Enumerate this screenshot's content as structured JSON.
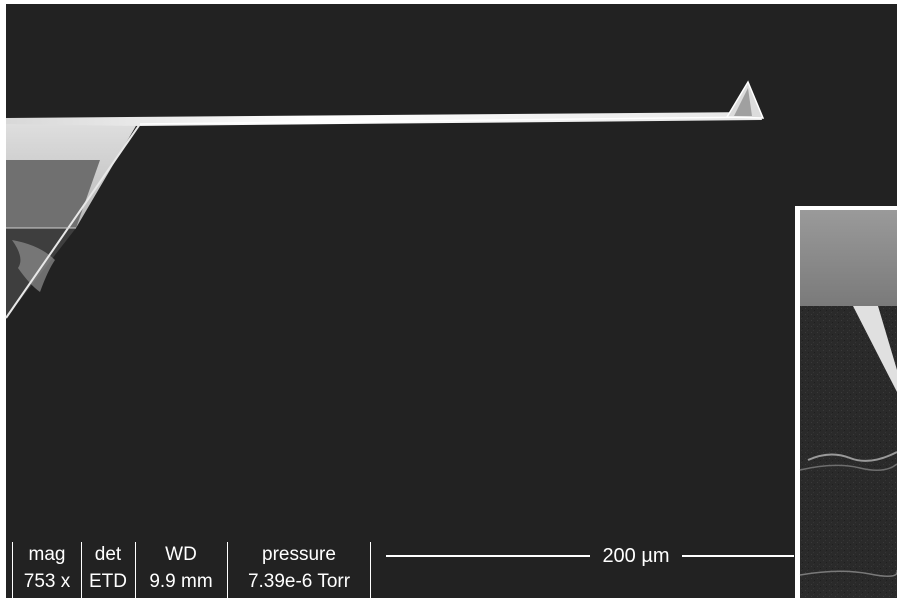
{
  "databar": {
    "mag": {
      "header": "mag",
      "value": "753 x"
    },
    "det": {
      "header": "det",
      "value": "ETD"
    },
    "wd": {
      "header": "WD",
      "value": "9.9 mm"
    },
    "pressure": {
      "header": "pressure",
      "value": "7.39e-6 Torr"
    }
  },
  "scale_bar": {
    "label": "200 µm"
  },
  "colors": {
    "background": "#222222",
    "cantilever": "#f2f2f2",
    "substrate": "#8a8a8a",
    "text": "#ffffff"
  }
}
